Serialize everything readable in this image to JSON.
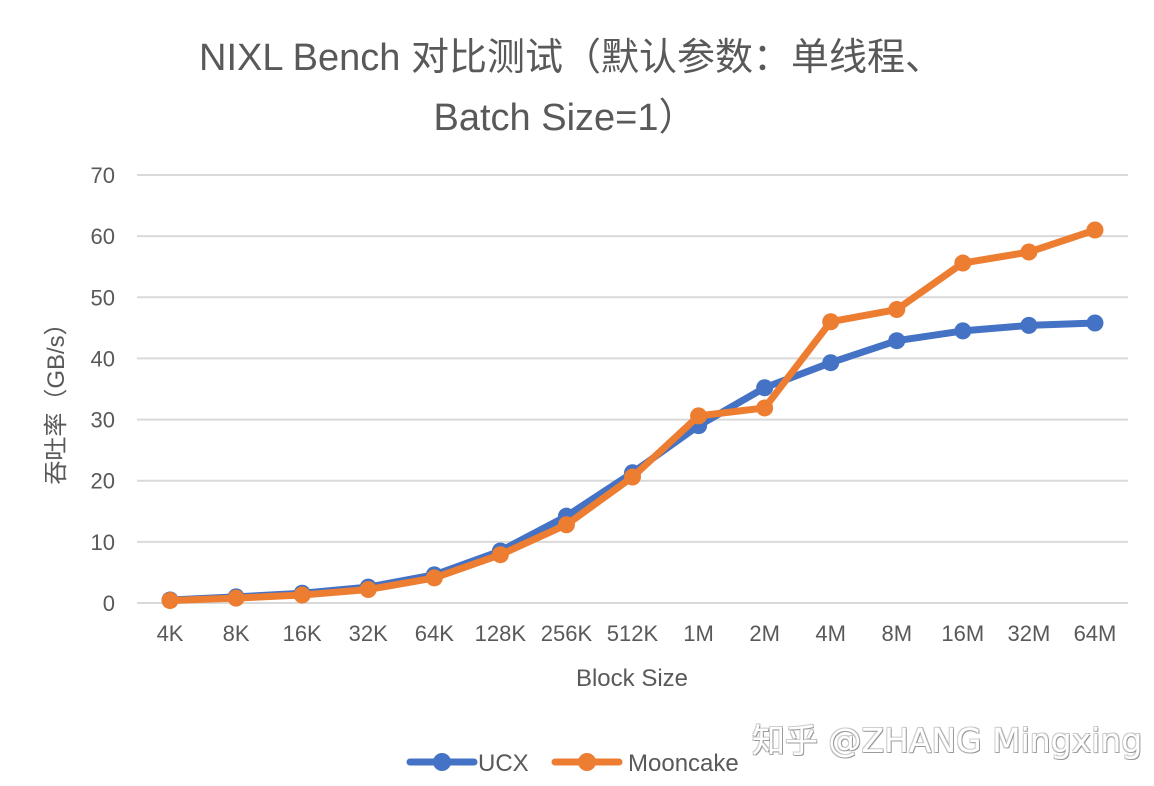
{
  "chart_data": {
    "type": "line",
    "title": "NIXL Bench 对比测试（默认参数：单线程、Batch Size=1）",
    "title_lines": [
      "NIXL Bench 对比测试（默认参数：单线程、",
      "Batch Size=1）"
    ],
    "xlabel": "Block Size",
    "ylabel": "吞吐率（GB/s）",
    "categories": [
      "4K",
      "8K",
      "16K",
      "32K",
      "64K",
      "128K",
      "256K",
      "512K",
      "1M",
      "2M",
      "4M",
      "8M",
      "16M",
      "32M",
      "64M"
    ],
    "ylim": [
      0,
      70
    ],
    "yticks": [
      0,
      10,
      20,
      30,
      40,
      50,
      60,
      70
    ],
    "grid": true,
    "legend_position": "bottom",
    "series": [
      {
        "name": "UCX",
        "color": "#4472C4",
        "values": [
          0.5,
          1.0,
          1.6,
          2.6,
          4.6,
          8.5,
          14.2,
          21.3,
          29.0,
          35.2,
          39.3,
          42.9,
          44.5,
          45.4,
          45.8
        ]
      },
      {
        "name": "Mooncake",
        "color": "#ED7D31",
        "values": [
          0.4,
          0.8,
          1.3,
          2.2,
          4.1,
          7.9,
          12.8,
          20.6,
          30.6,
          31.9,
          46.0,
          48.0,
          55.6,
          57.4,
          61.0
        ]
      }
    ]
  },
  "watermark": "知乎 @ZHANG Mingxing"
}
